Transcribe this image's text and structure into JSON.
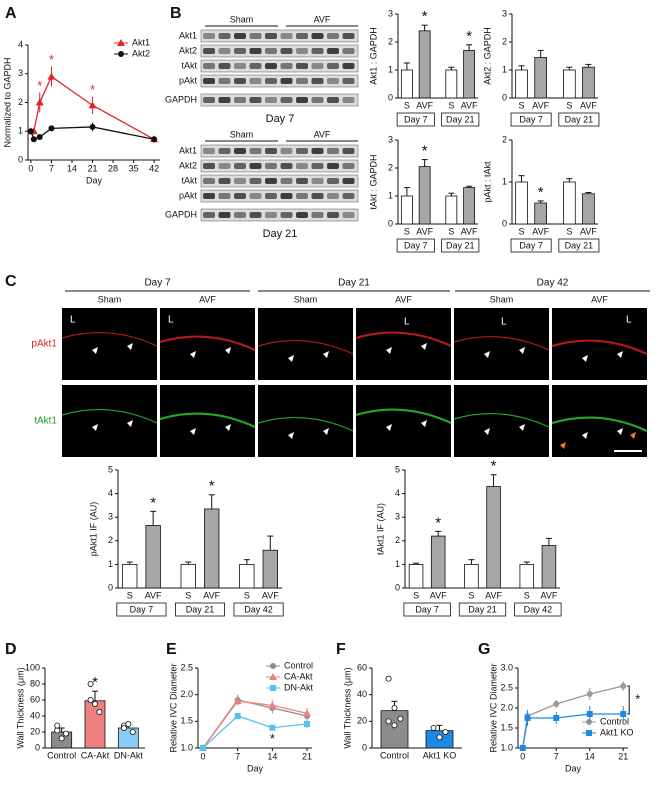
{
  "panel_labels": [
    "A",
    "B",
    "C",
    "D",
    "E",
    "F",
    "G"
  ],
  "blots": {
    "groups": [
      "Sham",
      "AVF"
    ],
    "rows": [
      "Akt1",
      "Akt2",
      "tAkt",
      "pAkt",
      "GAPDH"
    ],
    "captions": [
      "Day 7",
      "Day 21"
    ]
  },
  "micrographs": {
    "days": [
      "Day 7",
      "Day 21",
      "Day 42"
    ],
    "groups": [
      "Sham",
      "AVF"
    ],
    "stains": [
      "pAkt1",
      "tAkt1"
    ],
    "lumen_label": "L"
  },
  "chart_data": [
    {
      "type": "line",
      "ylabel": "Normalized to GAPDH",
      "xlabel": "Day",
      "x": [
        0,
        1,
        3,
        7,
        21,
        42
      ],
      "xlim": [
        -1,
        44
      ],
      "xticks": [
        0,
        7,
        14,
        21,
        28,
        35,
        42
      ],
      "ylim": [
        0,
        4
      ],
      "yticks": [
        0,
        1,
        2,
        3,
        4
      ],
      "legend": "upper right",
      "series": [
        {
          "name": "Akt1",
          "color": "#e3222b",
          "marker": "triangle",
          "values": [
            1,
            1,
            2,
            2.9,
            1.9,
            0.72
          ],
          "errors": [
            0.05,
            0.1,
            0.35,
            0.35,
            0.3,
            0.1
          ],
          "stars": [
            null,
            null,
            "*",
            "*",
            "*",
            null
          ]
        },
        {
          "name": "Akt2",
          "color": "#111111",
          "marker": "circle",
          "values": [
            1,
            0.72,
            0.8,
            1.1,
            1.15,
            0.72
          ],
          "errors": [
            0.05,
            0.05,
            0.05,
            0.1,
            0.15,
            0.1
          ]
        }
      ]
    },
    {
      "type": "bar",
      "ylabel": "Akt1 : GAPDH",
      "categories": [
        "S",
        "AVF",
        "S",
        "AVF"
      ],
      "groups": [
        "Day 7",
        "Day 21"
      ],
      "ylim": [
        0,
        3
      ],
      "yticks": [
        0,
        1,
        2,
        3
      ],
      "colors": [
        "#ffffff",
        "#a6a6a6",
        "#ffffff",
        "#a6a6a6"
      ],
      "values": [
        1,
        2.4,
        1,
        1.7
      ],
      "errors": [
        0.25,
        0.2,
        0.1,
        0.2
      ],
      "stars": [
        null,
        "*",
        null,
        "*"
      ]
    },
    {
      "type": "bar",
      "ylabel": "Akt2 : GAPDH",
      "categories": [
        "S",
        "AVF",
        "S",
        "AVF"
      ],
      "groups": [
        "Day 7",
        "Day 21"
      ],
      "ylim": [
        0,
        3
      ],
      "yticks": [
        0,
        1,
        2,
        3
      ],
      "colors": [
        "#ffffff",
        "#a6a6a6",
        "#ffffff",
        "#a6a6a6"
      ],
      "values": [
        1,
        1.45,
        1,
        1.1
      ],
      "errors": [
        0.15,
        0.25,
        0.1,
        0.1
      ]
    },
    {
      "type": "bar",
      "ylabel": "tAkt : GAPDH",
      "categories": [
        "S",
        "AVF",
        "S",
        "AVF"
      ],
      "groups": [
        "Day 7",
        "Day 21"
      ],
      "ylim": [
        0,
        3
      ],
      "yticks": [
        0,
        1,
        2,
        3
      ],
      "colors": [
        "#ffffff",
        "#a6a6a6",
        "#ffffff",
        "#a6a6a6"
      ],
      "values": [
        1,
        2.05,
        1,
        1.3
      ],
      "errors": [
        0.3,
        0.25,
        0.1,
        0.05
      ],
      "stars": [
        null,
        "*",
        null,
        null
      ]
    },
    {
      "type": "bar",
      "ylabel": "pAkt : tAkt",
      "categories": [
        "S",
        "AVF",
        "S",
        "AVF"
      ],
      "groups": [
        "Day 7",
        "Day 21"
      ],
      "ylim": [
        0,
        2
      ],
      "yticks": [
        0,
        1,
        2
      ],
      "colors": [
        "#ffffff",
        "#a6a6a6",
        "#ffffff",
        "#a6a6a6"
      ],
      "values": [
        1,
        0.5,
        1,
        0.72
      ],
      "errors": [
        0.15,
        0.05,
        0.08,
        0.03
      ],
      "stars": [
        null,
        "*",
        null,
        null
      ]
    },
    {
      "type": "bar",
      "ylabel": "pAkt1 IF (AU)",
      "categories": [
        "S",
        "AVF",
        "S",
        "AVF",
        "S",
        "AVF"
      ],
      "groups": [
        "Day 7",
        "Day 21",
        "Day 42"
      ],
      "ylim": [
        0,
        5
      ],
      "yticks": [
        0,
        1,
        2,
        3,
        4,
        5
      ],
      "colors": [
        "#ffffff",
        "#a6a6a6",
        "#ffffff",
        "#a6a6a6",
        "#ffffff",
        "#a6a6a6"
      ],
      "values": [
        1,
        2.65,
        1,
        3.35,
        1,
        1.6
      ],
      "errors": [
        0.1,
        0.6,
        0.1,
        0.6,
        0.2,
        0.6
      ],
      "stars": [
        null,
        "*",
        null,
        "*",
        null,
        null
      ]
    },
    {
      "type": "bar",
      "ylabel": "tAkt1 IF (AU)",
      "categories": [
        "S",
        "AVF",
        "S",
        "AVF",
        "S",
        "AVF"
      ],
      "groups": [
        "Day 7",
        "Day 21",
        "Day 42"
      ],
      "ylim": [
        0,
        5
      ],
      "yticks": [
        0,
        1,
        2,
        3,
        4,
        5
      ],
      "colors": [
        "#ffffff",
        "#a6a6a6",
        "#ffffff",
        "#a6a6a6",
        "#ffffff",
        "#a6a6a6"
      ],
      "values": [
        1,
        2.2,
        1,
        4.3,
        1,
        1.8
      ],
      "errors": [
        0.05,
        0.2,
        0.2,
        0.5,
        0.1,
        0.3
      ],
      "stars": [
        null,
        "*",
        null,
        "*",
        null,
        null
      ]
    },
    {
      "type": "bar",
      "ylabel": "Wall Thickness (μm)",
      "categories": [
        "Control",
        "CA-Akt",
        "DN-Akt"
      ],
      "ylim": [
        0,
        100
      ],
      "yticks": [
        0,
        20,
        40,
        60,
        80,
        100
      ],
      "colors": [
        "#8c8c8c",
        "#f08080",
        "#87cefa"
      ],
      "values": [
        20,
        59,
        25
      ],
      "errors": [
        5,
        12,
        5
      ],
      "stars": [
        null,
        "*",
        null
      ],
      "points": [
        [
          22,
          12,
          18,
          28
        ],
        [
          80,
          55,
          45,
          60
        ],
        [
          28,
          30,
          20,
          25
        ]
      ]
    },
    {
      "type": "line",
      "ylabel": "Relative IVC Diameter",
      "xlabel": "Day",
      "x": [
        0,
        7,
        14,
        21
      ],
      "xlim": [
        -1,
        22
      ],
      "xticks": [
        0,
        7,
        14,
        21
      ],
      "ylim": [
        1,
        2.5
      ],
      "yticks": [
        {
          "value": 1,
          "label": "1.0"
        },
        1.5,
        {
          "value": 2,
          "label": "2.0"
        },
        2.5
      ],
      "legend": "upper right",
      "series": [
        {
          "name": "Control",
          "color": "#8c8c8c",
          "marker": "circle",
          "values": [
            1,
            1.9,
            1.75,
            1.6
          ],
          "errors": [
            0,
            0.1,
            0.1,
            0.1
          ]
        },
        {
          "name": "CA-Akt",
          "color": "#f07f7f",
          "marker": "triangle",
          "values": [
            1,
            1.88,
            1.8,
            1.65
          ],
          "errors": [
            0,
            0.08,
            0.1,
            0.1
          ]
        },
        {
          "name": "DN-Akt",
          "color": "#5bc0eb",
          "marker": "square",
          "values": [
            1,
            1.6,
            1.38,
            1.45
          ],
          "errors": [
            0,
            0.05,
            0.05,
            0.08
          ],
          "stars": [
            null,
            null,
            "*",
            null
          ]
        }
      ]
    },
    {
      "type": "bar",
      "ylabel": "Wall Thickness (μm)",
      "categories": [
        "Control",
        "Akt1 KO"
      ],
      "ylim": [
        0,
        60
      ],
      "yticks": [
        0,
        20,
        40,
        60
      ],
      "colors": [
        "#8c8c8c",
        "#1e88e5"
      ],
      "values": [
        28,
        13
      ],
      "errors": [
        7,
        4
      ],
      "points": [
        [
          52,
          30,
          22,
          20,
          17
        ],
        [
          15,
          8,
          12
        ]
      ]
    },
    {
      "type": "line",
      "ylabel": "Relative IVC Diameter",
      "xlabel": "Day",
      "x": [
        0,
        1,
        7,
        14,
        21
      ],
      "xlim": [
        -1,
        22
      ],
      "xticks": [
        0,
        7,
        14,
        21
      ],
      "ylim": [
        1,
        3
      ],
      "yticks": [
        {
          "value": 1,
          "label": "1.0"
        },
        1.5,
        {
          "value": 2,
          "label": "2.0"
        },
        2.5,
        {
          "value": 3,
          "label": "3.0"
        }
      ],
      "legend": "lower right",
      "annotation": "*",
      "series": [
        {
          "name": "Control",
          "color": "#999999",
          "marker": "circle",
          "values": [
            1,
            1.8,
            2.1,
            2.35,
            2.55
          ],
          "errors": [
            0,
            0.1,
            0.1,
            0.15,
            0.12
          ]
        },
        {
          "name": "Akt1 KO",
          "color": "#1e88e5",
          "marker": "square",
          "values": [
            1,
            1.75,
            1.75,
            1.85,
            1.85
          ],
          "errors": [
            0,
            0.2,
            0.15,
            0.2,
            0.2
          ]
        }
      ]
    }
  ]
}
